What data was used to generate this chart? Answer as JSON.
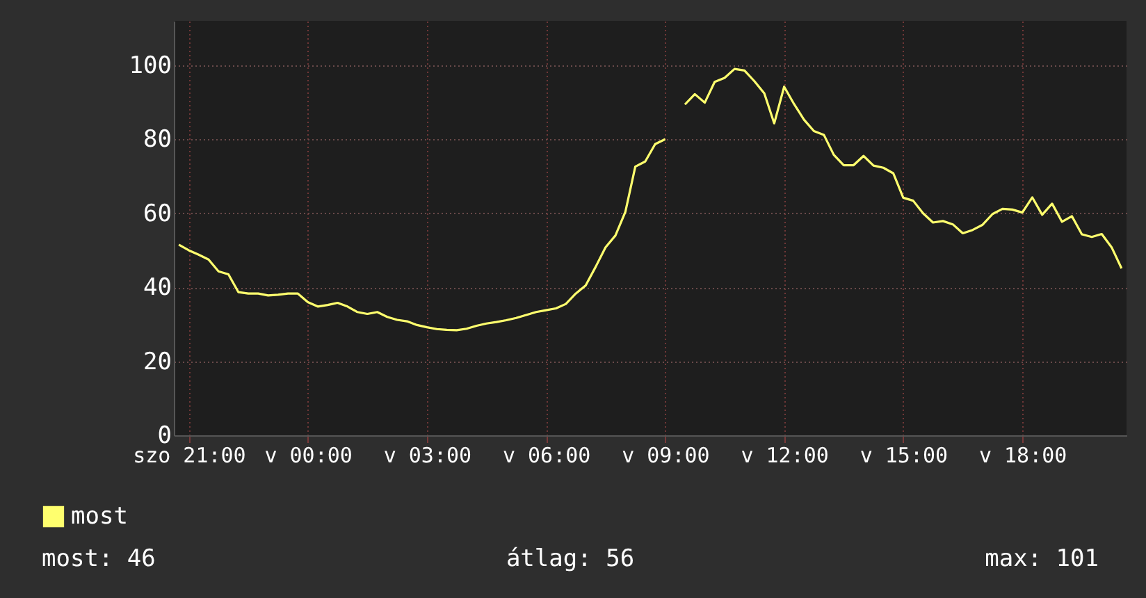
{
  "chart_data": {
    "type": "line",
    "categories": [
      null,
      "szo 21:00",
      null,
      null,
      null,
      null,
      null,
      null,
      null,
      null,
      null,
      null,
      null,
      "v 00:00",
      null,
      null,
      null,
      null,
      null,
      null,
      null,
      null,
      null,
      null,
      null,
      "v 03:00",
      null,
      null,
      null,
      null,
      null,
      null,
      null,
      null,
      null,
      null,
      null,
      "v 06:00",
      null,
      null,
      null,
      null,
      null,
      null,
      null,
      null,
      null,
      null,
      null,
      "v 09:00",
      null,
      null,
      null,
      null,
      null,
      null,
      null,
      null,
      null,
      null,
      null,
      "v 12:00",
      null,
      null,
      null,
      null,
      null,
      null,
      null,
      null,
      null,
      null,
      null,
      "v 15:00",
      null,
      null,
      null,
      null,
      null,
      null,
      null,
      null,
      null,
      null,
      null,
      "v 18:00",
      null,
      null,
      null,
      null,
      null,
      null,
      null,
      null,
      null,
      null
    ],
    "series": [
      {
        "name": "most",
        "color": "#ffff6e",
        "values": [
          51.5,
          50,
          48.8,
          47.5,
          44.3,
          43.5,
          38.7,
          38.3,
          38.3,
          37.8,
          38,
          38.3,
          38.3,
          36,
          34.8,
          35.2,
          35.8,
          34.8,
          33.3,
          32.8,
          33.3,
          32,
          31.2,
          30.8,
          29.8,
          29.2,
          28.7,
          28.5,
          28.4,
          28.8,
          29.6,
          30.2,
          30.6,
          31.1,
          31.7,
          32.5,
          33.3,
          33.8,
          34.3,
          35.5,
          38.3,
          40.5,
          45.5,
          50.8,
          54,
          60.4,
          72.6,
          74,
          78.7,
          80,
          null,
          89.4,
          92.2,
          89.9,
          95.5,
          96.6,
          99,
          98.6,
          95.7,
          92.4,
          84.3,
          94.2,
          89.5,
          85.3,
          82.2,
          81.2,
          75.8,
          73,
          73,
          75.5,
          72.9,
          72.3,
          70.8,
          64.2,
          63.4,
          60,
          57.5,
          57.9,
          57,
          54.6,
          55.5,
          56.9,
          59.8,
          61.2,
          61,
          60.2,
          64.3,
          59.6,
          62.6,
          57.7,
          59.2,
          54.3,
          53.6,
          54.4,
          50.8,
          45.1
        ]
      }
    ],
    "ylim": [
      0,
      112
    ],
    "yticks": [
      0,
      20,
      40,
      60,
      80,
      100
    ],
    "grid": true,
    "legend": "bottom left",
    "annotations": [
      "most: 46",
      "átlag: 56",
      "max: 101"
    ]
  }
}
